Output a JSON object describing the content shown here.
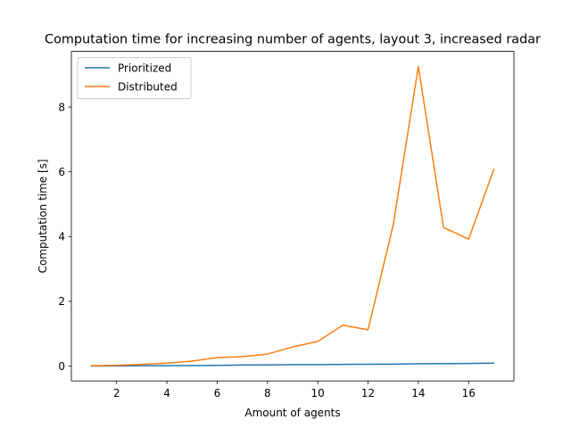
{
  "chart_data": {
    "type": "line",
    "title": "Computation time for increasing number of agents, layout 3, increased radar",
    "xlabel": "Amount of agents",
    "ylabel": "Computation time [s]",
    "xlim": [
      0.2,
      17.8
    ],
    "ylim": [
      -0.46,
      9.72
    ],
    "xticks": [
      2,
      4,
      6,
      8,
      10,
      12,
      14,
      16
    ],
    "yticks": [
      0,
      2,
      4,
      6,
      8
    ],
    "x": [
      1,
      2,
      3,
      4,
      5,
      6,
      7,
      8,
      9,
      10,
      11,
      12,
      13,
      14,
      15,
      16,
      17
    ],
    "series": [
      {
        "name": "Prioritized",
        "color": "#1f77b4",
        "values": [
          0.0,
          0.005,
          0.01,
          0.01,
          0.015,
          0.02,
          0.03,
          0.035,
          0.04,
          0.045,
          0.05,
          0.055,
          0.06,
          0.07,
          0.075,
          0.08,
          0.09
        ]
      },
      {
        "name": "Distributed",
        "color": "#ff7f0e",
        "values": [
          0.01,
          0.02,
          0.05,
          0.09,
          0.15,
          0.26,
          0.29,
          0.37,
          0.59,
          0.76,
          1.26,
          1.12,
          4.36,
          9.25,
          4.28,
          3.92,
          6.07
        ]
      }
    ],
    "legend_position": "upper-left"
  }
}
